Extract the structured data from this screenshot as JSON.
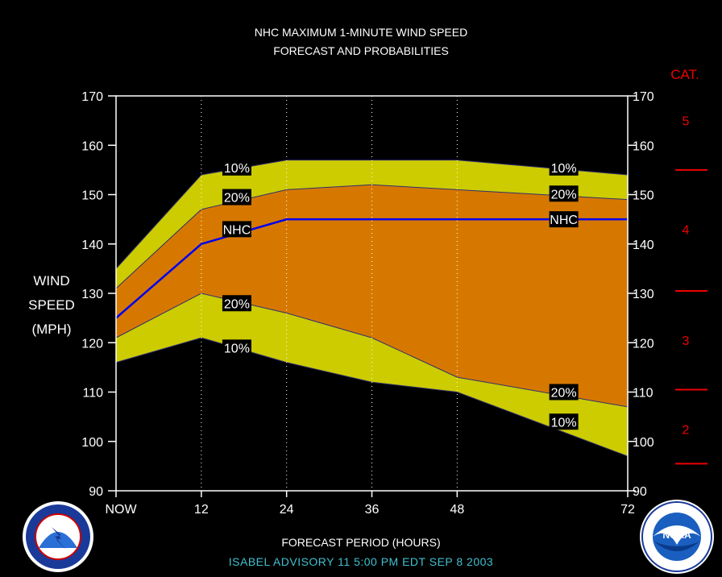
{
  "titles": {
    "line1": "NHC MAXIMUM 1-MINUTE WIND SPEED",
    "line2": "FORECAST AND PROBABILITIES"
  },
  "y_label": {
    "line1": "WIND",
    "line2": "SPEED",
    "line3": "(MPH)"
  },
  "x_label": "FORECAST PERIOD (HOURS)",
  "footer": "ISABEL   ADVISORY  11  5:00  PM  EDT  SEP  8  2003",
  "category_title": "CAT.",
  "logos": {
    "left": "noaa-nws-logo",
    "right": "noaa-logo"
  },
  "colors": {
    "background": "#000000",
    "outer_band": "#cccc00",
    "inner_band": "#d67800",
    "nhc_line": "#0000ee",
    "category": "#ee0000",
    "footer": "#40c0d0"
  },
  "chart_data": {
    "type": "area",
    "x": [
      0,
      12,
      24,
      36,
      48,
      72
    ],
    "x_tick_labels": [
      "NOW",
      "12",
      "24",
      "36",
      "48",
      "72"
    ],
    "xlim": [
      0,
      72
    ],
    "ylim": [
      90,
      170
    ],
    "y_ticks": [
      90,
      100,
      110,
      120,
      130,
      140,
      150,
      160,
      170
    ],
    "series": [
      {
        "name": "10%",
        "role": "upper-10",
        "values": [
          135,
          154,
          157,
          157,
          157,
          154
        ]
      },
      {
        "name": "20%",
        "role": "upper-20",
        "values": [
          131,
          147,
          151,
          152,
          151,
          149
        ]
      },
      {
        "name": "NHC",
        "role": "nhc",
        "values": [
          125,
          140,
          145,
          145,
          145,
          145
        ]
      },
      {
        "name": "20%",
        "role": "lower-20",
        "values": [
          121,
          130,
          126,
          121,
          113,
          107
        ]
      },
      {
        "name": "10%",
        "role": "lower-10",
        "values": [
          116,
          121,
          116,
          112,
          110,
          97
        ]
      }
    ],
    "annotations": [
      {
        "text": "10%",
        "x": 17,
        "y": 155.5
      },
      {
        "text": "20%",
        "x": 17,
        "y": 149.5
      },
      {
        "text": "NHC",
        "x": 17,
        "y": 143
      },
      {
        "text": "20%",
        "x": 17,
        "y": 128
      },
      {
        "text": "10%",
        "x": 17,
        "y": 119
      },
      {
        "text": "10%",
        "x": 63,
        "y": 155.5
      },
      {
        "text": "20%",
        "x": 63,
        "y": 150.2
      },
      {
        "text": "NHC",
        "x": 63,
        "y": 145
      },
      {
        "text": "20%",
        "x": 63,
        "y": 110
      },
      {
        "text": "10%",
        "x": 63,
        "y": 104
      }
    ],
    "categories": [
      {
        "label": "5",
        "y": 165
      },
      {
        "label": "4",
        "y": 143
      },
      {
        "label": "3",
        "y": 120.5
      },
      {
        "label": "2",
        "y": 102.5
      }
    ],
    "category_boundaries": [
      155,
      130.5,
      110.5,
      95.5
    ],
    "grid": "vertical-dotted"
  }
}
